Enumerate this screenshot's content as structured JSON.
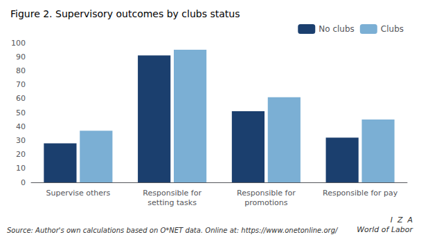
{
  "chart_data": {
    "type": "bar",
    "title": "Figure 2. Supervisory outcomes by clubs status",
    "categories": [
      "Supervise others",
      "Responsible for\nsetting tasks",
      "Responsible for\npromotions",
      "Responsible for pay"
    ],
    "series": [
      {
        "name": "No clubs",
        "color": "#1b3f6e",
        "values": [
          28,
          91,
          51,
          32
        ]
      },
      {
        "name": "Clubs",
        "color": "#7bafd4",
        "values": [
          37,
          95,
          61,
          45
        ]
      }
    ],
    "ylim": [
      0,
      100
    ],
    "yticks": [
      0,
      10,
      20,
      30,
      40,
      50,
      60,
      70,
      80,
      90,
      100
    ],
    "grid": false,
    "legend": "upper right",
    "annotations": [
      "Source: Author's own calculations based on O*NET data. Online at: https://www.onetonline.org/",
      "I  Z  A",
      "World of Labor"
    ]
  }
}
